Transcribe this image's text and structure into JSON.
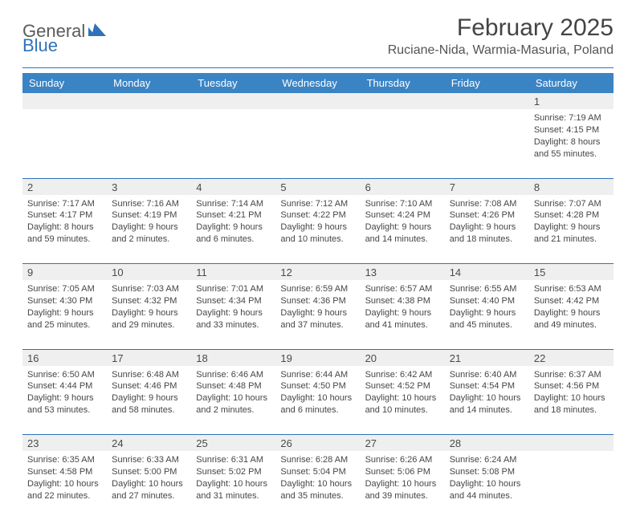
{
  "logo": {
    "part1": "General",
    "part2": "Blue"
  },
  "title": "February 2025",
  "location": "Ruciane-Nida, Warmia-Masuria, Poland",
  "colors": {
    "header_bg": "#3b84c4",
    "accent": "#2f72b9",
    "daynum_bg": "#efefef",
    "text": "#3a3a3a",
    "background": "#ffffff"
  },
  "day_headers": [
    "Sunday",
    "Monday",
    "Tuesday",
    "Wednesday",
    "Thursday",
    "Friday",
    "Saturday"
  ],
  "weeks": [
    {
      "nums": [
        "",
        "",
        "",
        "",
        "",
        "",
        "1"
      ],
      "cells": [
        null,
        null,
        null,
        null,
        null,
        null,
        {
          "sunrise": "Sunrise: 7:19 AM",
          "sunset": "Sunset: 4:15 PM",
          "daylight1": "Daylight: 8 hours",
          "daylight2": "and 55 minutes."
        }
      ]
    },
    {
      "nums": [
        "2",
        "3",
        "4",
        "5",
        "6",
        "7",
        "8"
      ],
      "cells": [
        {
          "sunrise": "Sunrise: 7:17 AM",
          "sunset": "Sunset: 4:17 PM",
          "daylight1": "Daylight: 8 hours",
          "daylight2": "and 59 minutes."
        },
        {
          "sunrise": "Sunrise: 7:16 AM",
          "sunset": "Sunset: 4:19 PM",
          "daylight1": "Daylight: 9 hours",
          "daylight2": "and 2 minutes."
        },
        {
          "sunrise": "Sunrise: 7:14 AM",
          "sunset": "Sunset: 4:21 PM",
          "daylight1": "Daylight: 9 hours",
          "daylight2": "and 6 minutes."
        },
        {
          "sunrise": "Sunrise: 7:12 AM",
          "sunset": "Sunset: 4:22 PM",
          "daylight1": "Daylight: 9 hours",
          "daylight2": "and 10 minutes."
        },
        {
          "sunrise": "Sunrise: 7:10 AM",
          "sunset": "Sunset: 4:24 PM",
          "daylight1": "Daylight: 9 hours",
          "daylight2": "and 14 minutes."
        },
        {
          "sunrise": "Sunrise: 7:08 AM",
          "sunset": "Sunset: 4:26 PM",
          "daylight1": "Daylight: 9 hours",
          "daylight2": "and 18 minutes."
        },
        {
          "sunrise": "Sunrise: 7:07 AM",
          "sunset": "Sunset: 4:28 PM",
          "daylight1": "Daylight: 9 hours",
          "daylight2": "and 21 minutes."
        }
      ]
    },
    {
      "nums": [
        "9",
        "10",
        "11",
        "12",
        "13",
        "14",
        "15"
      ],
      "cells": [
        {
          "sunrise": "Sunrise: 7:05 AM",
          "sunset": "Sunset: 4:30 PM",
          "daylight1": "Daylight: 9 hours",
          "daylight2": "and 25 minutes."
        },
        {
          "sunrise": "Sunrise: 7:03 AM",
          "sunset": "Sunset: 4:32 PM",
          "daylight1": "Daylight: 9 hours",
          "daylight2": "and 29 minutes."
        },
        {
          "sunrise": "Sunrise: 7:01 AM",
          "sunset": "Sunset: 4:34 PM",
          "daylight1": "Daylight: 9 hours",
          "daylight2": "and 33 minutes."
        },
        {
          "sunrise": "Sunrise: 6:59 AM",
          "sunset": "Sunset: 4:36 PM",
          "daylight1": "Daylight: 9 hours",
          "daylight2": "and 37 minutes."
        },
        {
          "sunrise": "Sunrise: 6:57 AM",
          "sunset": "Sunset: 4:38 PM",
          "daylight1": "Daylight: 9 hours",
          "daylight2": "and 41 minutes."
        },
        {
          "sunrise": "Sunrise: 6:55 AM",
          "sunset": "Sunset: 4:40 PM",
          "daylight1": "Daylight: 9 hours",
          "daylight2": "and 45 minutes."
        },
        {
          "sunrise": "Sunrise: 6:53 AM",
          "sunset": "Sunset: 4:42 PM",
          "daylight1": "Daylight: 9 hours",
          "daylight2": "and 49 minutes."
        }
      ]
    },
    {
      "nums": [
        "16",
        "17",
        "18",
        "19",
        "20",
        "21",
        "22"
      ],
      "cells": [
        {
          "sunrise": "Sunrise: 6:50 AM",
          "sunset": "Sunset: 4:44 PM",
          "daylight1": "Daylight: 9 hours",
          "daylight2": "and 53 minutes."
        },
        {
          "sunrise": "Sunrise: 6:48 AM",
          "sunset": "Sunset: 4:46 PM",
          "daylight1": "Daylight: 9 hours",
          "daylight2": "and 58 minutes."
        },
        {
          "sunrise": "Sunrise: 6:46 AM",
          "sunset": "Sunset: 4:48 PM",
          "daylight1": "Daylight: 10 hours",
          "daylight2": "and 2 minutes."
        },
        {
          "sunrise": "Sunrise: 6:44 AM",
          "sunset": "Sunset: 4:50 PM",
          "daylight1": "Daylight: 10 hours",
          "daylight2": "and 6 minutes."
        },
        {
          "sunrise": "Sunrise: 6:42 AM",
          "sunset": "Sunset: 4:52 PM",
          "daylight1": "Daylight: 10 hours",
          "daylight2": "and 10 minutes."
        },
        {
          "sunrise": "Sunrise: 6:40 AM",
          "sunset": "Sunset: 4:54 PM",
          "daylight1": "Daylight: 10 hours",
          "daylight2": "and 14 minutes."
        },
        {
          "sunrise": "Sunrise: 6:37 AM",
          "sunset": "Sunset: 4:56 PM",
          "daylight1": "Daylight: 10 hours",
          "daylight2": "and 18 minutes."
        }
      ]
    },
    {
      "nums": [
        "23",
        "24",
        "25",
        "26",
        "27",
        "28",
        ""
      ],
      "cells": [
        {
          "sunrise": "Sunrise: 6:35 AM",
          "sunset": "Sunset: 4:58 PM",
          "daylight1": "Daylight: 10 hours",
          "daylight2": "and 22 minutes."
        },
        {
          "sunrise": "Sunrise: 6:33 AM",
          "sunset": "Sunset: 5:00 PM",
          "daylight1": "Daylight: 10 hours",
          "daylight2": "and 27 minutes."
        },
        {
          "sunrise": "Sunrise: 6:31 AM",
          "sunset": "Sunset: 5:02 PM",
          "daylight1": "Daylight: 10 hours",
          "daylight2": "and 31 minutes."
        },
        {
          "sunrise": "Sunrise: 6:28 AM",
          "sunset": "Sunset: 5:04 PM",
          "daylight1": "Daylight: 10 hours",
          "daylight2": "and 35 minutes."
        },
        {
          "sunrise": "Sunrise: 6:26 AM",
          "sunset": "Sunset: 5:06 PM",
          "daylight1": "Daylight: 10 hours",
          "daylight2": "and 39 minutes."
        },
        {
          "sunrise": "Sunrise: 6:24 AM",
          "sunset": "Sunset: 5:08 PM",
          "daylight1": "Daylight: 10 hours",
          "daylight2": "and 44 minutes."
        },
        null
      ]
    }
  ]
}
